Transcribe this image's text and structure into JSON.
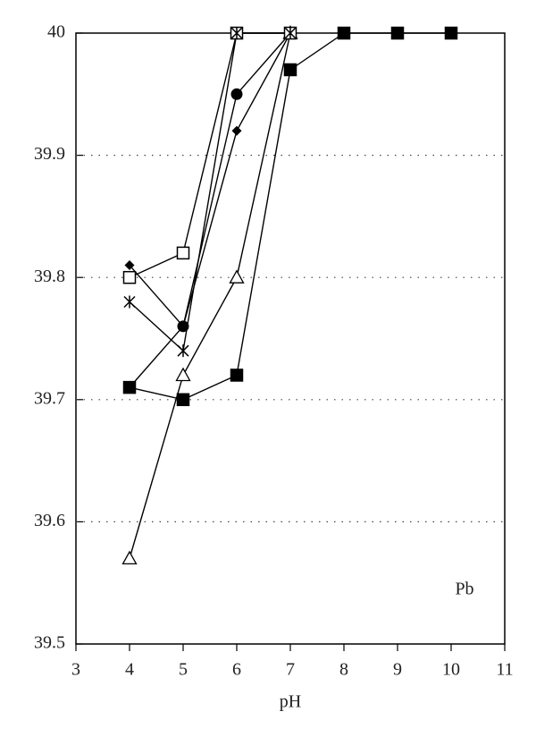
{
  "chart_data": {
    "type": "line",
    "xlabel": "pH",
    "annotation": "Pb",
    "xlim": [
      3,
      11
    ],
    "xticks": [
      3,
      4,
      5,
      6,
      7,
      8,
      9,
      10,
      11
    ],
    "ylim": [
      39.5,
      40
    ],
    "yticks": [
      39.5,
      39.6,
      39.7,
      39.8,
      39.9,
      40
    ],
    "grid": true,
    "series": [
      {
        "marker": "square-filled",
        "color": "#000000",
        "x": [
          4,
          5,
          6,
          7,
          8,
          9,
          10
        ],
        "values": [
          39.71,
          39.7,
          39.72,
          39.97,
          40,
          40,
          40
        ]
      },
      {
        "marker": "triangle-open",
        "color": "#000000",
        "x": [
          4,
          5,
          6,
          7
        ],
        "values": [
          39.57,
          39.72,
          39.8,
          40
        ]
      },
      {
        "marker": "circle-filled",
        "color": "#000000",
        "x": [
          4,
          5,
          6,
          7
        ],
        "values": [
          39.71,
          39.76,
          39.95,
          40
        ]
      },
      {
        "marker": "diamond-filled",
        "color": "#000000",
        "x": [
          4,
          5,
          6,
          7
        ],
        "values": [
          39.81,
          39.76,
          39.92,
          40
        ]
      },
      {
        "marker": "square-open",
        "color": "#000000",
        "x": [
          4,
          5,
          6,
          7
        ],
        "values": [
          39.8,
          39.82,
          40,
          40
        ]
      },
      {
        "marker": "asterisk",
        "color": "#000000",
        "x": [
          4,
          5,
          6,
          7
        ],
        "values": [
          39.78,
          39.74,
          40,
          40
        ]
      }
    ]
  }
}
